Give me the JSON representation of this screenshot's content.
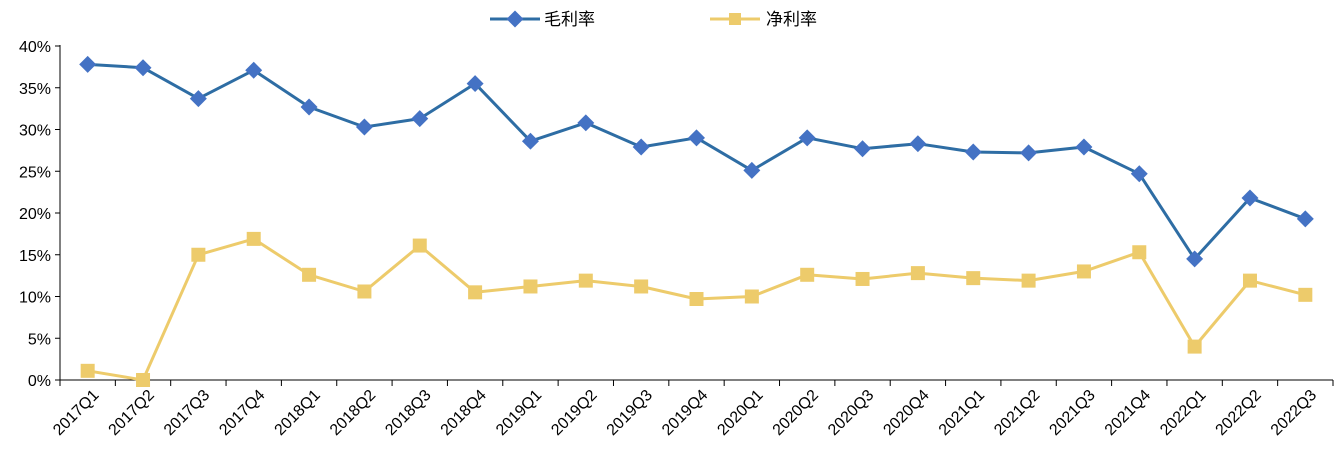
{
  "chart_data": {
    "type": "line",
    "categories": [
      "2017Q1",
      "2017Q2",
      "2017Q3",
      "2017Q4",
      "2018Q1",
      "2018Q2",
      "2018Q3",
      "2018Q4",
      "2019Q1",
      "2019Q2",
      "2019Q3",
      "2019Q4",
      "2020Q1",
      "2020Q2",
      "2020Q3",
      "2020Q4",
      "2021Q1",
      "2021Q2",
      "2021Q3",
      "2021Q4",
      "2022Q1",
      "2022Q2",
      "2022Q3"
    ],
    "series": [
      {
        "name": "毛利率",
        "color": "#2E6DA4",
        "marker_color": "#4472C4",
        "marker": "diamond",
        "values": [
          37.8,
          37.4,
          33.7,
          37.1,
          32.7,
          30.3,
          31.3,
          35.5,
          28.6,
          30.8,
          27.9,
          29.0,
          25.1,
          29.0,
          27.7,
          28.3,
          27.3,
          27.2,
          27.9,
          24.7,
          14.5,
          21.8,
          19.3
        ]
      },
      {
        "name": "净利率",
        "color": "#EDCB6B",
        "marker_color": "#EDCB6B",
        "marker": "square",
        "values": [
          1.1,
          0.0,
          15.0,
          16.9,
          12.6,
          10.6,
          16.1,
          10.5,
          11.2,
          11.9,
          11.2,
          9.7,
          10.0,
          12.6,
          12.1,
          12.8,
          12.2,
          11.9,
          13.0,
          15.3,
          4.0,
          11.9,
          10.2
        ]
      }
    ],
    "y_ticks": [
      "0%",
      "5%",
      "10%",
      "15%",
      "20%",
      "25%",
      "30%",
      "35%",
      "40%"
    ],
    "ylim": [
      0,
      40
    ],
    "legend_position": "top-center",
    "grid": false
  }
}
